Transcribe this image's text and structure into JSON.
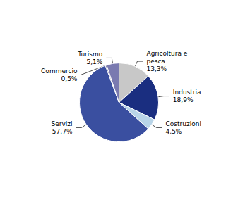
{
  "chart_data": {
    "type": "pie",
    "categories": [
      "Agricoltura e\npesca",
      "Industria",
      "Costruzioni",
      "Servizi",
      "Commercio",
      "Turismo"
    ],
    "values": [
      13.3,
      18.9,
      4.5,
      57.7,
      0.5,
      5.1
    ],
    "value_labels": [
      "13,3%",
      "18,9%",
      "4,5%",
      "57,7%",
      "0,5%",
      "5,1%"
    ],
    "colors": [
      "#c8c8c8",
      "#1a2e80",
      "#b8d4e8",
      "#3a4fa0",
      "#6b6b9a",
      "#7a7ab0"
    ],
    "data_labels": true,
    "legend": false
  }
}
